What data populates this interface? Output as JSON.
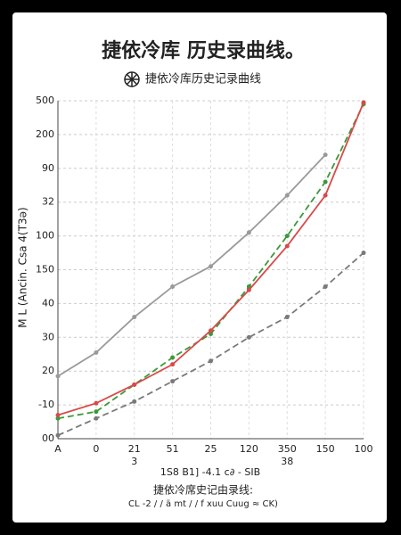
{
  "chart_data": {
    "type": "line",
    "title": "捷依冷库 历史录曲线。",
    "subtitle": "捷依冷库历史记录曲线",
    "x_label": "1S8 B1] -4.1 c∂ - SIB",
    "y_label": "M L (Ancin. Csa 4(T3ə)",
    "footer": [
      "捷依冷席史记由录线:",
      "CL -2 / / ä mt / / f xuu Cuug ≈ CK)"
    ],
    "categories": [
      "A",
      "0",
      "21",
      "51",
      "25",
      "120",
      "350",
      "150",
      "100"
    ],
    "sub_categories": [
      null,
      null,
      "3",
      null,
      null,
      null,
      "38",
      null,
      null
    ],
    "ylim": [
      0,
      10
    ],
    "yticks": [
      {
        "value": 0,
        "label": "00"
      },
      {
        "value": 1,
        "label": "-10"
      },
      {
        "value": 2,
        "label": "20"
      },
      {
        "value": 3,
        "label": "30"
      },
      {
        "value": 4,
        "label": "40"
      },
      {
        "value": 5,
        "label": "150"
      },
      {
        "value": 6,
        "label": "100"
      },
      {
        "value": 7,
        "label": "32"
      },
      {
        "value": 8,
        "label": "90"
      },
      {
        "value": 9,
        "label": "200"
      },
      {
        "value": 10,
        "label": "500"
      }
    ],
    "grid": true,
    "series": [
      {
        "color": "#9a9a9a",
        "dash": false,
        "values": [
          1.85,
          2.55,
          3.6,
          4.5,
          5.1,
          6.1,
          7.2,
          8.4,
          null
        ]
      },
      {
        "color": "#3a9a3a",
        "dash": true,
        "values": [
          0.6,
          0.8,
          1.6,
          2.4,
          3.1,
          4.5,
          6.0,
          7.6,
          9.9
        ]
      },
      {
        "color": "#d84a4a",
        "dash": false,
        "values": [
          0.7,
          1.05,
          1.6,
          2.2,
          3.2,
          4.4,
          5.7,
          7.2,
          9.95
        ]
      },
      {
        "color": "#7a7a7a",
        "dash": true,
        "values": [
          0.1,
          0.6,
          1.1,
          1.7,
          2.3,
          3.0,
          3.6,
          4.5,
          5.5
        ]
      }
    ]
  }
}
